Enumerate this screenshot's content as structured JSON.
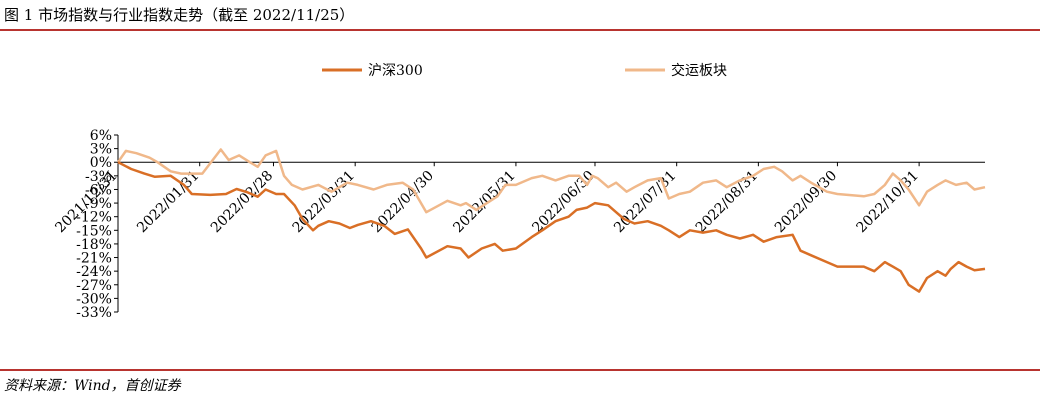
{
  "figure": {
    "title": "图 1 市场指数与行业指数走势（截至 2022/11/25）",
    "source": "资料来源：Wind，首创证券"
  },
  "colors": {
    "rule": "#b8342f",
    "series1": "#d96f26",
    "series2": "#f0b88a"
  },
  "chart_data": {
    "type": "line",
    "title": "",
    "xlabel": "",
    "ylabel": "",
    "ylim": [
      -33,
      6
    ],
    "y_ticks": [
      6,
      3,
      0,
      -3,
      -6,
      -9,
      -12,
      -15,
      -18,
      -21,
      -24,
      -27,
      -30,
      -33
    ],
    "y_tick_labels": [
      "6%",
      "3%",
      "0%",
      "-3%",
      "-6%",
      "-9%",
      "-12%",
      "-15%",
      "-18%",
      "-21%",
      "-24%",
      "-27%",
      "-30%",
      "-33%"
    ],
    "x_tick_labels": [
      "2021/12/31",
      "2022/01/31",
      "2022/02/28",
      "2022/03/31",
      "2022/04/30",
      "2022/05/31",
      "2022/06/30",
      "2022/07/31",
      "2022/08/31",
      "2022/09/30",
      "2022/10/31"
    ],
    "x_ticks": [
      "2021-12-31",
      "2022-01-31",
      "2022-02-28",
      "2022-03-31",
      "2022-04-30",
      "2022-05-31",
      "2022-06-30",
      "2022-07-31",
      "2022-08-31",
      "2022-09-30",
      "2022-10-31"
    ],
    "x_range": [
      "2021-12-31",
      "2022-11-25"
    ],
    "grid": false,
    "legend_position": "top",
    "series": [
      {
        "name": "沪深300",
        "color": "#d96f26",
        "points": [
          [
            "2021-12-31",
            0
          ],
          [
            "2022-01-05",
            -1.5
          ],
          [
            "2022-01-10",
            -2.5
          ],
          [
            "2022-01-14",
            -3.2
          ],
          [
            "2022-01-20",
            -3.0
          ],
          [
            "2022-01-25",
            -5.0
          ],
          [
            "2022-01-28",
            -7.0
          ],
          [
            "2022-02-04",
            -7.2
          ],
          [
            "2022-02-10",
            -7.0
          ],
          [
            "2022-02-14",
            -5.9
          ],
          [
            "2022-02-18",
            -6.6
          ],
          [
            "2022-02-22",
            -7.6
          ],
          [
            "2022-02-25",
            -6.0
          ],
          [
            "2022-03-01",
            -7.0
          ],
          [
            "2022-03-04",
            -7.0
          ],
          [
            "2022-03-08",
            -9.5
          ],
          [
            "2022-03-11",
            -12.5
          ],
          [
            "2022-03-15",
            -15.0
          ],
          [
            "2022-03-17",
            -14.0
          ],
          [
            "2022-03-21",
            -13.0
          ],
          [
            "2022-03-25",
            -13.5
          ],
          [
            "2022-03-29",
            -14.5
          ],
          [
            "2022-04-01",
            -13.8
          ],
          [
            "2022-04-06",
            -13.0
          ],
          [
            "2022-04-11",
            -14.0
          ],
          [
            "2022-04-15",
            -15.8
          ],
          [
            "2022-04-20",
            -14.8
          ],
          [
            "2022-04-25",
            -19.0
          ],
          [
            "2022-04-27",
            -21.0
          ],
          [
            "2022-05-05",
            -18.5
          ],
          [
            "2022-05-10",
            -19.0
          ],
          [
            "2022-05-13",
            -21.0
          ],
          [
            "2022-05-18",
            -19.0
          ],
          [
            "2022-05-23",
            -18.0
          ],
          [
            "2022-05-26",
            -19.5
          ],
          [
            "2022-05-31",
            -19.0
          ],
          [
            "2022-06-06",
            -16.5
          ],
          [
            "2022-06-10",
            -15.0
          ],
          [
            "2022-06-15",
            -13.0
          ],
          [
            "2022-06-20",
            -12.0
          ],
          [
            "2022-06-23",
            -10.5
          ],
          [
            "2022-06-27",
            -10.0
          ],
          [
            "2022-06-30",
            -9.0
          ],
          [
            "2022-07-05",
            -9.5
          ],
          [
            "2022-07-08",
            -11.0
          ],
          [
            "2022-07-11",
            -12.5
          ],
          [
            "2022-07-15",
            -13.5
          ],
          [
            "2022-07-20",
            -13.0
          ],
          [
            "2022-07-25",
            -14.0
          ],
          [
            "2022-07-28",
            -15.0
          ],
          [
            "2022-08-01",
            -16.5
          ],
          [
            "2022-08-05",
            -15.0
          ],
          [
            "2022-08-10",
            -15.5
          ],
          [
            "2022-08-15",
            -15.0
          ],
          [
            "2022-08-19",
            -16.0
          ],
          [
            "2022-08-24",
            -16.8
          ],
          [
            "2022-08-29",
            -16.0
          ],
          [
            "2022-09-02",
            -17.5
          ],
          [
            "2022-09-07",
            -16.5
          ],
          [
            "2022-09-13",
            -16.0
          ],
          [
            "2022-09-16",
            -19.5
          ],
          [
            "2022-09-20",
            -20.5
          ],
          [
            "2022-09-26",
            -22.0
          ],
          [
            "2022-09-30",
            -23.0
          ],
          [
            "2022-10-10",
            -23.0
          ],
          [
            "2022-10-14",
            -24.0
          ],
          [
            "2022-10-18",
            -22.0
          ],
          [
            "2022-10-21",
            -23.0
          ],
          [
            "2022-10-24",
            -24.0
          ],
          [
            "2022-10-27",
            -27.0
          ],
          [
            "2022-10-31",
            -28.5
          ],
          [
            "2022-11-03",
            -25.5
          ],
          [
            "2022-11-07",
            -24.0
          ],
          [
            "2022-11-10",
            -25.0
          ],
          [
            "2022-11-12",
            -23.5
          ],
          [
            "2022-11-15",
            -22.0
          ],
          [
            "2022-11-18",
            -23.0
          ],
          [
            "2022-11-21",
            -23.8
          ],
          [
            "2022-11-25",
            -23.5
          ]
        ]
      },
      {
        "name": "交运板块",
        "color": "#f0b88a",
        "points": [
          [
            "2021-12-31",
            0
          ],
          [
            "2022-01-03",
            2.5
          ],
          [
            "2022-01-07",
            2.0
          ],
          [
            "2022-01-12",
            1.0
          ],
          [
            "2022-01-15",
            0.0
          ],
          [
            "2022-01-20",
            -2.0
          ],
          [
            "2022-01-24",
            -2.5
          ],
          [
            "2022-01-28",
            -2.5
          ],
          [
            "2022-02-01",
            -2.5
          ],
          [
            "2022-02-08",
            2.8
          ],
          [
            "2022-02-11",
            0.5
          ],
          [
            "2022-02-15",
            1.5
          ],
          [
            "2022-02-19",
            0.0
          ],
          [
            "2022-02-22",
            -1.0
          ],
          [
            "2022-02-25",
            1.5
          ],
          [
            "2022-03-01",
            2.5
          ],
          [
            "2022-03-04",
            -3.0
          ],
          [
            "2022-03-07",
            -5.0
          ],
          [
            "2022-03-11",
            -6.0
          ],
          [
            "2022-03-17",
            -5.0
          ],
          [
            "2022-03-22",
            -6.5
          ],
          [
            "2022-03-28",
            -4.5
          ],
          [
            "2022-04-01",
            -5.0
          ],
          [
            "2022-04-07",
            -6.0
          ],
          [
            "2022-04-12",
            -5.0
          ],
          [
            "2022-04-18",
            -4.5
          ],
          [
            "2022-04-22",
            -6.0
          ],
          [
            "2022-04-27",
            -11.0
          ],
          [
            "2022-05-05",
            -8.5
          ],
          [
            "2022-05-10",
            -9.5
          ],
          [
            "2022-05-12",
            -9.0
          ],
          [
            "2022-05-16",
            -10.5
          ],
          [
            "2022-05-20",
            -9.0
          ],
          [
            "2022-05-24",
            -7.5
          ],
          [
            "2022-05-27",
            -5.0
          ],
          [
            "2022-05-31",
            -5.0
          ],
          [
            "2022-06-06",
            -3.5
          ],
          [
            "2022-06-10",
            -3.0
          ],
          [
            "2022-06-15",
            -4.0
          ],
          [
            "2022-06-20",
            -3.0
          ],
          [
            "2022-06-24",
            -3.0
          ],
          [
            "2022-06-27",
            -5.0
          ],
          [
            "2022-06-29",
            -3.0
          ],
          [
            "2022-07-01",
            -3.5
          ],
          [
            "2022-07-05",
            -5.5
          ],
          [
            "2022-07-08",
            -4.5
          ],
          [
            "2022-07-12",
            -6.5
          ],
          [
            "2022-07-15",
            -5.5
          ],
          [
            "2022-07-20",
            -4.0
          ],
          [
            "2022-07-25",
            -3.5
          ],
          [
            "2022-07-28",
            -8.0
          ],
          [
            "2022-08-01",
            -7.0
          ],
          [
            "2022-08-05",
            -6.5
          ],
          [
            "2022-08-10",
            -4.5
          ],
          [
            "2022-08-15",
            -4.0
          ],
          [
            "2022-08-19",
            -5.5
          ],
          [
            "2022-08-24",
            -4.0
          ],
          [
            "2022-08-29",
            -3.0
          ],
          [
            "2022-09-02",
            -1.5
          ],
          [
            "2022-09-06",
            -1.0
          ],
          [
            "2022-09-09",
            -2.0
          ],
          [
            "2022-09-13",
            -4.0
          ],
          [
            "2022-09-16",
            -3.0
          ],
          [
            "2022-09-20",
            -4.5
          ],
          [
            "2022-09-26",
            -6.5
          ],
          [
            "2022-09-30",
            -7.0
          ],
          [
            "2022-10-10",
            -7.5
          ],
          [
            "2022-10-14",
            -7.0
          ],
          [
            "2022-10-18",
            -5.0
          ],
          [
            "2022-10-21",
            -2.5
          ],
          [
            "2022-10-24",
            -4.0
          ],
          [
            "2022-10-27",
            -6.0
          ],
          [
            "2022-10-31",
            -9.5
          ],
          [
            "2022-11-03",
            -6.5
          ],
          [
            "2022-11-07",
            -5.0
          ],
          [
            "2022-11-10",
            -4.0
          ],
          [
            "2022-11-14",
            -5.0
          ],
          [
            "2022-11-18",
            -4.5
          ],
          [
            "2022-11-21",
            -6.0
          ],
          [
            "2022-11-25",
            -5.5
          ]
        ]
      }
    ]
  }
}
